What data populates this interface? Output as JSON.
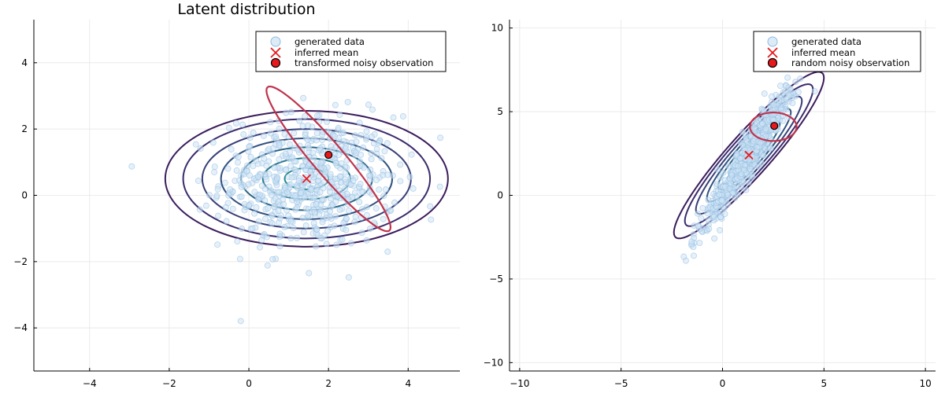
{
  "chart_data": [
    {
      "type": "scatter",
      "title": "Latent distribution",
      "xlim": [
        -5.4,
        5.3
      ],
      "ylim": [
        -5.3,
        5.3
      ],
      "xticks": [
        -4,
        -2,
        0,
        2,
        4
      ],
      "yticks": [
        -4,
        -2,
        0,
        2,
        4
      ],
      "xtick_labels": [
        "−4",
        "−2",
        "0",
        "2",
        "4"
      ],
      "ytick_labels": [
        "−4",
        "−2",
        "0",
        "2",
        "4"
      ],
      "grid": true,
      "legend_position": "top-right",
      "legend": [
        "generated data",
        "inferred mean",
        "transformed noisy observation"
      ],
      "scatter_distribution": {
        "mean": [
          1.5,
          0.4
        ],
        "std": [
          1.1,
          1.0
        ],
        "correlation": 0.0,
        "count": 600
      },
      "inferred_mean": [
        1.45,
        0.5
      ],
      "noisy_observation": [
        2.0,
        1.22
      ],
      "contour_ellipses": [
        {
          "center": [
            1.45,
            0.5
          ],
          "rx": 3.55,
          "ry": 2.05,
          "angle_deg": 0
        },
        {
          "center": [
            1.45,
            0.5
          ],
          "rx": 3.1,
          "ry": 1.8,
          "angle_deg": 0
        },
        {
          "center": [
            1.45,
            0.5
          ],
          "rx": 2.62,
          "ry": 1.5,
          "angle_deg": 0
        },
        {
          "center": [
            1.45,
            0.5
          ],
          "rx": 2.15,
          "ry": 1.22,
          "angle_deg": 0
        },
        {
          "center": [
            1.45,
            0.5
          ],
          "rx": 1.65,
          "ry": 0.95,
          "angle_deg": 0
        },
        {
          "center": [
            1.45,
            0.5
          ],
          "rx": 1.1,
          "ry": 0.62,
          "angle_deg": 0
        },
        {
          "center": [
            1.45,
            0.5
          ],
          "rx": 0.55,
          "ry": 0.32,
          "angle_deg": 0
        }
      ],
      "observation_ellipse": {
        "center": [
          2.0,
          1.1
        ],
        "rx": 2.65,
        "ry": 0.42,
        "angle_deg": -55
      }
    },
    {
      "type": "scatter",
      "title": "",
      "xlim": [
        -10.5,
        10.5
      ],
      "ylim": [
        -10.5,
        10.5
      ],
      "xticks": [
        -10,
        -5,
        0,
        5,
        10
      ],
      "yticks": [
        -10,
        -5,
        0,
        5,
        10
      ],
      "xtick_labels": [
        "−10",
        "−5",
        "0",
        "5",
        "10"
      ],
      "ytick_labels": [
        "−10",
        "−5",
        "0",
        "5",
        "10"
      ],
      "grid": true,
      "legend_position": "top-right",
      "legend": [
        "generated data",
        "inferred mean",
        "random noisy observation"
      ],
      "scatter_distribution": {
        "mean": [
          1.3,
          2.4
        ],
        "std": [
          1.2,
          2.3
        ],
        "correlation": 0.96,
        "count": 600
      },
      "inferred_mean": [
        1.3,
        2.4
      ],
      "noisy_observation": [
        2.55,
        4.15
      ],
      "contour_ellipses": [
        {
          "center": [
            1.3,
            2.4
          ],
          "major": 6.1,
          "minor": 1.12,
          "angle_deg": 54
        },
        {
          "center": [
            1.3,
            2.4
          ],
          "major": 5.2,
          "minor": 0.98,
          "angle_deg": 54
        },
        {
          "center": [
            1.3,
            2.4
          ],
          "major": 4.3,
          "minor": 0.82,
          "angle_deg": 54
        },
        {
          "center": [
            1.3,
            2.4
          ],
          "major": 3.4,
          "minor": 0.66,
          "angle_deg": 54
        },
        {
          "center": [
            1.3,
            2.4
          ],
          "major": 2.5,
          "minor": 0.5,
          "angle_deg": 54
        },
        {
          "center": [
            1.3,
            2.4
          ],
          "major": 1.6,
          "minor": 0.33,
          "angle_deg": 54
        },
        {
          "center": [
            1.3,
            2.4
          ],
          "major": 0.8,
          "minor": 0.17,
          "angle_deg": 54
        }
      ],
      "observation_ellipse": {
        "center": [
          2.5,
          4.1
        ],
        "rx": 1.15,
        "ry": 0.85,
        "angle_deg": 0
      }
    }
  ],
  "colors": {
    "scatter_fill": "#cfe3f4",
    "scatter_stroke": "#8fbce3",
    "mean_marker": "#e8181b",
    "observation_marker": "#e8181b",
    "observation_ellipse": "#c0334d",
    "contour_colors": [
      "#3b1c5c",
      "#3a2c6c",
      "#373f78",
      "#315180",
      "#2b6486",
      "#27768a",
      "#238a8d"
    ],
    "axis": "#000000",
    "grid": "#e6e6e6"
  }
}
